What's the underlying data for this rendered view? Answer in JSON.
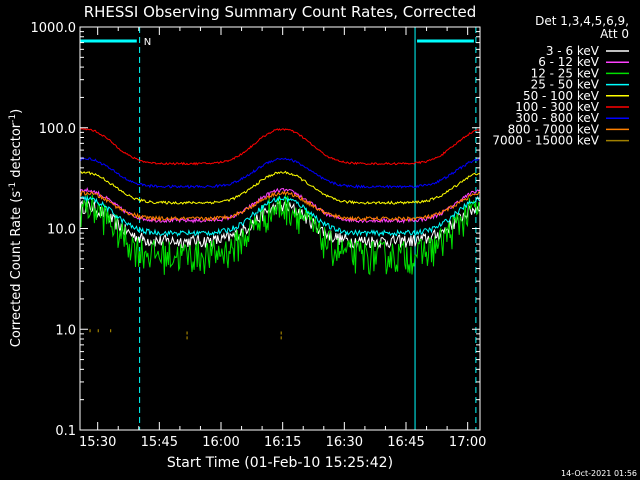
{
  "chart_data": {
    "type": "line",
    "title": "RHESSI Observing Summary Count Rates, Corrected",
    "xlabel": "Start Time (01-Feb-10 15:25:42)",
    "ylabel_main": "Corrected Count Rate (s",
    "ylabel_sup1": "-1",
    "ylabel_mid": " detector",
    "ylabel_sup2": "-1",
    "ylabel_end": ")",
    "yscale": "log",
    "ylim": [
      0.1,
      1000.0
    ],
    "xlim_min": [
      925.7,
      1023.0
    ],
    "xticks": [
      {
        "t": 930,
        "label": "15:30"
      },
      {
        "t": 945,
        "label": "15:45"
      },
      {
        "t": 960,
        "label": "16:00"
      },
      {
        "t": 975,
        "label": "16:15"
      },
      {
        "t": 990,
        "label": "16:30"
      },
      {
        "t": 1005,
        "label": "16:45"
      },
      {
        "t": 1020,
        "label": "17:00"
      }
    ],
    "yticks": [
      {
        "v": 0.1,
        "label": "0.1"
      },
      {
        "v": 1.0,
        "label": "1.0"
      },
      {
        "v": 10.0,
        "label": "10.0"
      },
      {
        "v": 100.0,
        "label": "100.0"
      },
      {
        "v": 1000.0,
        "label": "1000.0"
      }
    ],
    "legend": {
      "position": "right",
      "header1": "Det 1,3,4,5,6,9,",
      "header2": "Att 0"
    },
    "series": [
      {
        "name": "3 - 6 keV",
        "color": "#ffffff",
        "base": 7.5,
        "mult": 2.2,
        "noise": 0.1
      },
      {
        "name": "6 - 12 keV",
        "color": "#ff40ff",
        "base": 12,
        "mult": 2.0,
        "noise": 0.03
      },
      {
        "name": "12 - 25 keV",
        "color": "#00e000",
        "base": 5.5,
        "mult": 3.0,
        "noise": 0.15
      },
      {
        "name": "25 - 50 keV",
        "color": "#00ffff",
        "base": 9,
        "mult": 2.2,
        "noise": 0.04
      },
      {
        "name": "50 - 100 keV",
        "color": "#ffff00",
        "base": 18,
        "mult": 2.0,
        "noise": 0.02
      },
      {
        "name": "100 - 300 keV",
        "color": "#ff0000",
        "base": 44,
        "mult": 2.2,
        "noise": 0.015
      },
      {
        "name": "300 - 800 keV",
        "color": "#0000ff",
        "base": 26,
        "mult": 1.9,
        "noise": 0.02
      },
      {
        "name": "800 - 7000 keV",
        "color": "#ff8000",
        "base": 12.5,
        "mult": 1.8,
        "noise": 0.03
      },
      {
        "name": "7000 - 15000 keV",
        "color": "#a08000",
        "base": 0,
        "mult": 0,
        "noise": 0
      }
    ],
    "flags": [
      {
        "label": "N",
        "start_min": 925.7,
        "end_min": 940
      }
    ],
    "shading_boundaries_min": [
      925.7,
      940.2,
      1007.2,
      1022.0
    ],
    "footer_date": "14-Oct-2021 01:56"
  }
}
